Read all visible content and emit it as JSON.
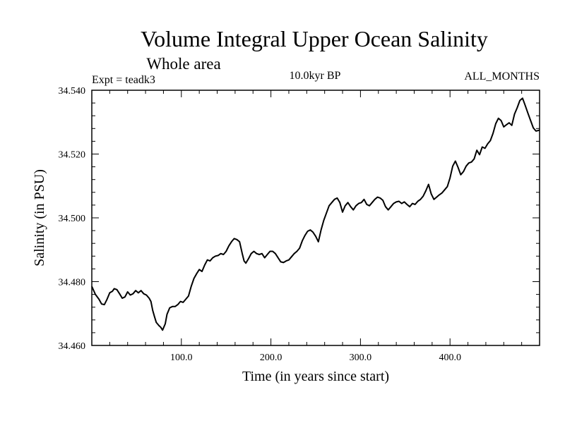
{
  "chart_data": {
    "type": "line",
    "title": "Volume Integral Upper Ocean Salinity",
    "subtitle": "Whole area",
    "header_left": "Expt = teadk3",
    "header_center": "10.0kyr BP",
    "header_right": "ALL_MONTHS",
    "xlabel": "Time (in years since start)",
    "ylabel": "Salinity (in PSU)",
    "xlim": [
      0,
      500
    ],
    "ylim": [
      34.46,
      34.54
    ],
    "x_ticks": [
      100,
      200,
      300,
      400
    ],
    "x_tick_labels": [
      "100.0",
      "200.0",
      "300.0",
      "400.0"
    ],
    "y_ticks": [
      34.46,
      34.48,
      34.5,
      34.52,
      34.54
    ],
    "y_tick_labels": [
      "34.460",
      "34.480",
      "34.500",
      "34.520",
      "34.540"
    ],
    "series": [
      {
        "name": "Salinity",
        "color": "#000000",
        "points": [
          [
            0,
            34.4785
          ],
          [
            4,
            34.476
          ],
          [
            8,
            34.4745
          ],
          [
            11,
            34.473
          ],
          [
            14,
            34.4728
          ],
          [
            17,
            34.4745
          ],
          [
            20,
            34.4765
          ],
          [
            23,
            34.477
          ],
          [
            25,
            34.4778
          ],
          [
            28,
            34.4775
          ],
          [
            31,
            34.4762
          ],
          [
            34,
            34.4748
          ],
          [
            37,
            34.4752
          ],
          [
            40,
            34.4768
          ],
          [
            43,
            34.4758
          ],
          [
            46,
            34.4762
          ],
          [
            49,
            34.4772
          ],
          [
            52,
            34.4765
          ],
          [
            55,
            34.4772
          ],
          [
            58,
            34.4762
          ],
          [
            61,
            34.4758
          ],
          [
            64,
            34.4748
          ],
          [
            66,
            34.4738
          ],
          [
            68,
            34.471
          ],
          [
            70,
            34.469
          ],
          [
            72,
            34.4672
          ],
          [
            75,
            34.4662
          ],
          [
            77,
            34.4657
          ],
          [
            79,
            34.4648
          ],
          [
            82,
            34.4668
          ],
          [
            84,
            34.4698
          ],
          [
            87,
            34.4718
          ],
          [
            90,
            34.4722
          ],
          [
            93,
            34.4722
          ],
          [
            96,
            34.4728
          ],
          [
            99,
            34.4738
          ],
          [
            102,
            34.4735
          ],
          [
            105,
            34.4745
          ],
          [
            108,
            34.4755
          ],
          [
            111,
            34.4785
          ],
          [
            114,
            34.481
          ],
          [
            117,
            34.4825
          ],
          [
            120,
            34.4838
          ],
          [
            123,
            34.4832
          ],
          [
            126,
            34.4852
          ],
          [
            129,
            34.4868
          ],
          [
            132,
            34.4865
          ],
          [
            135,
            34.4875
          ],
          [
            138,
            34.488
          ],
          [
            141,
            34.4882
          ],
          [
            144,
            34.4888
          ],
          [
            147,
            34.4885
          ],
          [
            150,
            34.4895
          ],
          [
            153,
            34.4912
          ],
          [
            156,
            34.4925
          ],
          [
            159,
            34.4935
          ],
          [
            162,
            34.4932
          ],
          [
            165,
            34.4925
          ],
          [
            168,
            34.4888
          ],
          [
            170,
            34.4865
          ],
          [
            172,
            34.4858
          ],
          [
            175,
            34.4872
          ],
          [
            178,
            34.4888
          ],
          [
            181,
            34.4895
          ],
          [
            184,
            34.4888
          ],
          [
            187,
            34.4885
          ],
          [
            190,
            34.4888
          ],
          [
            193,
            34.4875
          ],
          [
            196,
            34.4885
          ],
          [
            199,
            34.4895
          ],
          [
            202,
            34.4895
          ],
          [
            205,
            34.4888
          ],
          [
            208,
            34.4875
          ],
          [
            211,
            34.4862
          ],
          [
            214,
            34.486
          ],
          [
            217,
            34.4865
          ],
          [
            220,
            34.4868
          ],
          [
            223,
            34.4878
          ],
          [
            226,
            34.4888
          ],
          [
            229,
            34.4895
          ],
          [
            232,
            34.4905
          ],
          [
            235,
            34.4928
          ],
          [
            238,
            34.4945
          ],
          [
            241,
            34.4958
          ],
          [
            244,
            34.4962
          ],
          [
            247,
            34.4955
          ],
          [
            250,
            34.4942
          ],
          [
            253,
            34.4925
          ],
          [
            256,
            34.4962
          ],
          [
            259,
            34.4992
          ],
          [
            262,
            34.5015
          ],
          [
            265,
            34.5038
          ],
          [
            268,
            34.5048
          ],
          [
            271,
            34.5058
          ],
          [
            274,
            34.5062
          ],
          [
            277,
            34.5048
          ],
          [
            280,
            34.5018
          ],
          [
            283,
            34.5038
          ],
          [
            286,
            34.5048
          ],
          [
            289,
            34.5035
          ],
          [
            292,
            34.5025
          ],
          [
            295,
            34.5038
          ],
          [
            298,
            34.5045
          ],
          [
            301,
            34.5048
          ],
          [
            304,
            34.5058
          ],
          [
            307,
            34.5042
          ],
          [
            310,
            34.5038
          ],
          [
            313,
            34.5048
          ],
          [
            316,
            34.5058
          ],
          [
            319,
            34.5065
          ],
          [
            322,
            34.5062
          ],
          [
            325,
            34.5055
          ],
          [
            328,
            34.5035
          ],
          [
            331,
            34.5025
          ],
          [
            334,
            34.5035
          ],
          [
            337,
            34.5045
          ],
          [
            340,
            34.505
          ],
          [
            343,
            34.5052
          ],
          [
            346,
            34.5045
          ],
          [
            349,
            34.505
          ],
          [
            352,
            34.5042
          ],
          [
            355,
            34.5035
          ],
          [
            358,
            34.5045
          ],
          [
            361,
            34.5042
          ],
          [
            364,
            34.5052
          ],
          [
            367,
            34.5058
          ],
          [
            370,
            34.5068
          ],
          [
            373,
            34.5085
          ],
          [
            376,
            34.5105
          ],
          [
            379,
            34.5075
          ],
          [
            382,
            34.5058
          ],
          [
            385,
            34.5065
          ],
          [
            388,
            34.5072
          ],
          [
            391,
            34.5078
          ],
          [
            394,
            34.5088
          ],
          [
            397,
            34.5098
          ],
          [
            400,
            34.5125
          ],
          [
            403,
            34.5162
          ],
          [
            406,
            34.5178
          ],
          [
            409,
            34.5158
          ],
          [
            412,
            34.5135
          ],
          [
            415,
            34.5145
          ],
          [
            418,
            34.5162
          ],
          [
            421,
            34.5172
          ],
          [
            424,
            34.5175
          ],
          [
            427,
            34.5185
          ],
          [
            430,
            34.5212
          ],
          [
            433,
            34.5198
          ],
          [
            436,
            34.5222
          ],
          [
            439,
            34.5218
          ],
          [
            442,
            34.5232
          ],
          [
            445,
            34.5242
          ],
          [
            448,
            34.5265
          ],
          [
            451,
            34.5295
          ],
          [
            454,
            34.5312
          ],
          [
            457,
            34.5305
          ],
          [
            460,
            34.5285
          ],
          [
            463,
            34.5292
          ],
          [
            466,
            34.5298
          ],
          [
            469,
            34.529
          ],
          [
            472,
            34.5325
          ],
          [
            475,
            34.5345
          ],
          [
            478,
            34.5368
          ],
          [
            481,
            34.5375
          ],
          [
            484,
            34.5352
          ],
          [
            487,
            34.5328
          ],
          [
            490,
            34.5305
          ],
          [
            493,
            34.5282
          ],
          [
            496,
            34.5272
          ],
          [
            500,
            34.5275
          ]
        ]
      }
    ]
  }
}
